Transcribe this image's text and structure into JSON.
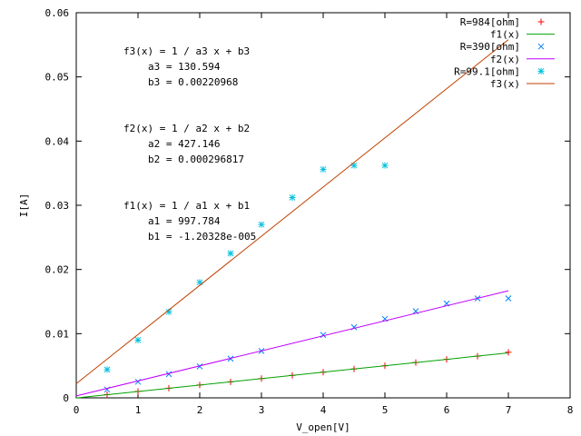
{
  "chart_data": {
    "type": "scatter",
    "xlabel": "V_open[V]",
    "ylabel": "I[A]",
    "xlim": [
      0,
      8
    ],
    "ylim": [
      0,
      0.06
    ],
    "x_ticks": [
      "0",
      "1",
      "2",
      "3",
      "4",
      "5",
      "6",
      "7",
      "8"
    ],
    "y_ticks": [
      "0",
      "0.01",
      "0.02",
      "0.03",
      "0.04",
      "0.05",
      "0.06"
    ],
    "grid": false,
    "legend_position": "top-right",
    "series": [
      {
        "name": "R=984[ohm]",
        "kind": "points",
        "marker": "plus",
        "color": "#ff0000",
        "x": [
          0.5,
          1.0,
          1.5,
          2.0,
          2.5,
          3.0,
          3.5,
          4.0,
          4.5,
          5.0,
          5.5,
          6.0,
          6.5,
          7.0
        ],
        "y": [
          0.0005,
          0.001,
          0.0015,
          0.002,
          0.0025,
          0.003,
          0.0035,
          0.004,
          0.0045,
          0.005,
          0.0055,
          0.006,
          0.0065,
          0.0071
        ]
      },
      {
        "name": "f1(x)",
        "kind": "line",
        "color": "#00a000",
        "x": [
          0,
          7
        ],
        "y": [
          -1.20328e-05,
          0.0070035
        ]
      },
      {
        "name": "R=390[ohm]",
        "kind": "points",
        "marker": "cross",
        "color": "#0080ff",
        "x": [
          0.5,
          1.0,
          1.5,
          2.0,
          2.5,
          3.0,
          4.0,
          4.5,
          5.0,
          5.5,
          6.0,
          6.5,
          7.0
        ],
        "y": [
          0.0013,
          0.0025,
          0.0037,
          0.0049,
          0.0061,
          0.0073,
          0.0098,
          0.011,
          0.0123,
          0.0135,
          0.0147,
          0.0155,
          0.0155
        ]
      },
      {
        "name": "f2(x)",
        "kind": "line",
        "color": "#c000ff",
        "x": [
          0,
          7
        ],
        "y": [
          0.000296817,
          0.016684
        ]
      },
      {
        "name": "R=99.1[ohm]",
        "kind": "points",
        "marker": "star",
        "color": "#00c0e0",
        "x": [
          0.5,
          1.0,
          1.5,
          2.0,
          2.5,
          3.0,
          3.5,
          4.0,
          4.5,
          5.0
        ],
        "y": [
          0.0044,
          0.009,
          0.0134,
          0.018,
          0.0225,
          0.027,
          0.0312,
          0.0356,
          0.0362,
          0.0362
        ]
      },
      {
        "name": "f3(x)",
        "kind": "line",
        "color": "#c04000",
        "x": [
          0,
          7
        ],
        "y": [
          0.00220968,
          0.055814
        ]
      }
    ],
    "annotations": [
      {
        "eq": "f3(x) = 1 / a3 x + b3",
        "a": "a3 = 130.594",
        "b": "b3 = 0.00220968"
      },
      {
        "eq": "f2(x) = 1 / a2 x + b2",
        "a": "a2 = 427.146",
        "b": "b2 = 0.000296817"
      },
      {
        "eq": "f1(x) = 1 / a1 x + b1",
        "a": "a1 = 997.784",
        "b": "b1 = -1.20328e-005"
      }
    ]
  }
}
